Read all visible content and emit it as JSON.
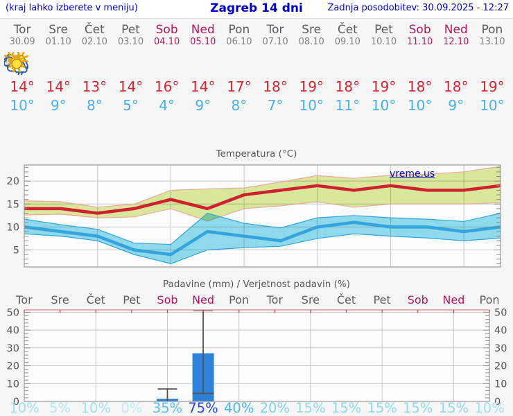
{
  "header": {
    "left": "(kraj lahko izberete v meniju)",
    "title": "Zagreb 14 dni",
    "right": "Zadnja posodobitev: 30.09.2025 - 12:27"
  },
  "units": {
    "degree": "°"
  },
  "colors": {
    "link_blue": "#0000cc",
    "weekend": "#b5175b",
    "weekday": "#5d5d5d",
    "tmax_red": "#d42330",
    "tmin_blue": "#47b1e9",
    "frame_gray": "#999999",
    "grid_gray": "#c6c6c6"
  },
  "days": [
    {
      "name": "Tor",
      "date": "30.09",
      "weekend": false,
      "icon": "cloudy-icon",
      "tmax": 14,
      "tmin": 10
    },
    {
      "name": "Sre",
      "date": "01.10",
      "weekend": false,
      "icon": "sun-cloud-icon",
      "tmax": 14,
      "tmin": 9
    },
    {
      "name": "Čet",
      "date": "02.10",
      "weekend": false,
      "icon": "sun-cloud-icon",
      "tmax": 13,
      "tmin": 8
    },
    {
      "name": "Pet",
      "date": "03.10",
      "weekend": false,
      "icon": "sunny-icon",
      "tmax": 14,
      "tmin": 5
    },
    {
      "name": "Sob",
      "date": "04.10",
      "weekend": true,
      "icon": "rain-icon",
      "tmax": 16,
      "tmin": 4
    },
    {
      "name": "Ned",
      "date": "05.10",
      "weekend": true,
      "icon": "sun-rain-icon",
      "tmax": 14,
      "tmin": 9
    },
    {
      "name": "Pon",
      "date": "06.10",
      "weekend": false,
      "icon": "sun-cloud-icon",
      "tmax": 17,
      "tmin": 8
    },
    {
      "name": "Tor",
      "date": "07.10",
      "weekend": false,
      "icon": "mostly-sunny-icon",
      "tmax": 18,
      "tmin": 7
    },
    {
      "name": "Sre",
      "date": "08.10",
      "weekend": false,
      "icon": "sunny-icon",
      "tmax": 19,
      "tmin": 10
    },
    {
      "name": "Čet",
      "date": "09.10",
      "weekend": false,
      "icon": "sunny-icon",
      "tmax": 18,
      "tmin": 11
    },
    {
      "name": "Pet",
      "date": "10.10",
      "weekend": false,
      "icon": "sunny-icon",
      "tmax": 19,
      "tmin": 10
    },
    {
      "name": "Sob",
      "date": "11.10",
      "weekend": true,
      "icon": "sunny-icon",
      "tmax": 18,
      "tmin": 10
    },
    {
      "name": "Ned",
      "date": "12.10",
      "weekend": true,
      "icon": "sunny-icon",
      "tmax": 18,
      "tmin": 9
    },
    {
      "name": "Pon",
      "date": "13.10",
      "weekend": false,
      "icon": "sunny-icon",
      "tmax": 19,
      "tmin": 10
    }
  ],
  "chart_data": [
    {
      "type": "line",
      "title": "Temperatura (°C)",
      "watermark": "vreme.us",
      "x_labels": [
        "Tor",
        "Sre",
        "Čet",
        "Pet",
        "Sob",
        "Ned",
        "Pon",
        "Tor",
        "Sre",
        "Čet",
        "Pet",
        "Sob",
        "Ned",
        "Pon"
      ],
      "ylim": [
        1.3,
        23.5
      ],
      "yticks": [
        5,
        10,
        15,
        20
      ],
      "grid_x_indices": [
        2,
        4,
        6,
        8,
        10,
        12
      ],
      "legend_position": "none",
      "series": [
        {
          "name": "max-temperature",
          "color": "#cf2030",
          "values": [
            14,
            14,
            13,
            14,
            16,
            14,
            17,
            18,
            19,
            18,
            19,
            18,
            18,
            19
          ]
        },
        {
          "name": "min-temperature",
          "color": "#35a3dc",
          "values": [
            10,
            9,
            8,
            5,
            4,
            9,
            8,
            7,
            10,
            11,
            10,
            10,
            9,
            10
          ]
        }
      ],
      "bands": [
        {
          "name": "max-temperature-range",
          "fill": "#dcea9c",
          "edge": "#eda89d",
          "upper": [
            15.7,
            15.5,
            14.3,
            15.0,
            18.0,
            18.3,
            18.5,
            19.8,
            21.2,
            20.6,
            21.3,
            21.5,
            22.0,
            23.2
          ],
          "lower": [
            12.6,
            12.8,
            12.0,
            12.2,
            14.0,
            11.3,
            14.0,
            14.6,
            15.5,
            14.3,
            15.0,
            15.0,
            15.0,
            15.3
          ]
        },
        {
          "name": "min-temperature-range",
          "fill": "#90dcee",
          "edge": "#35a3dc",
          "upper": [
            11.7,
            10.5,
            9.5,
            6.5,
            6.2,
            13.0,
            10.8,
            9.8,
            12.0,
            12.5,
            12.0,
            11.7,
            11.2,
            13.0
          ],
          "lower": [
            8.5,
            8.0,
            7.0,
            4.0,
            2.0,
            5.0,
            5.5,
            5.8,
            7.5,
            8.5,
            8.0,
            7.6,
            7.0,
            7.6
          ]
        }
      ]
    },
    {
      "type": "bar",
      "title": "Padavine (mm) / Verjetnost padavin (%)",
      "x_labels": [
        "Tor",
        "Sre",
        "Čet",
        "Pet",
        "Sob",
        "Ned",
        "Pon",
        "Tor",
        "Sre",
        "Čet",
        "Pet",
        "Sob",
        "Ned",
        "Pon"
      ],
      "ylim": [
        0,
        51.3
      ],
      "yticks": [
        0,
        10,
        20,
        30,
        40,
        50
      ],
      "grid_x_indices": [
        2,
        4,
        6,
        8,
        10,
        12
      ],
      "bar_color": "#2e82da",
      "values_mm": [
        0,
        0,
        0,
        0,
        1.5,
        27,
        0,
        0,
        0,
        0,
        0,
        0,
        0,
        0
      ],
      "whiskers": [
        null,
        null,
        null,
        null,
        {
          "low": 0,
          "high": 7
        },
        {
          "low": 4.5,
          "high": 51
        },
        null,
        null,
        null,
        null,
        null,
        null,
        null,
        null
      ],
      "percents": [
        "10%",
        "5%",
        "10%",
        "0%",
        "35%",
        "75%",
        "40%",
        "20%",
        "15%",
        "15%",
        "15%",
        "15%",
        "15%",
        "10%"
      ],
      "percent_colors": [
        "#a2e0f5",
        "#afe6f7",
        "#a2e0f5",
        "#bfecf9",
        "#55c0ec",
        "#2646d6",
        "#48b6ea",
        "#7ed2f0",
        "#90daf3",
        "#90daf3",
        "#90daf3",
        "#90daf3",
        "#90daf3",
        "#a2e0f5"
      ]
    }
  ]
}
